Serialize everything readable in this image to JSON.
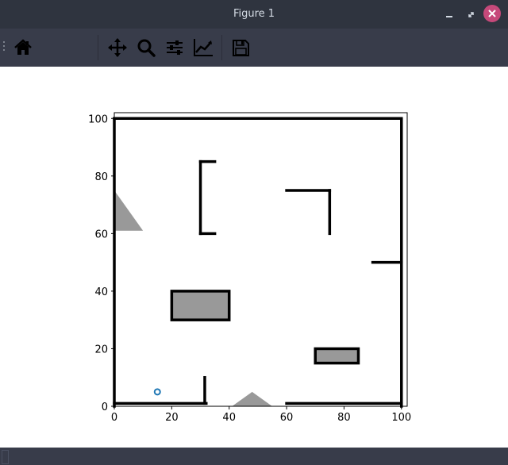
{
  "window": {
    "title": "Figure 1"
  },
  "toolbar": {
    "buttons": [
      {
        "name": "home-button",
        "icon": "home-icon"
      },
      {
        "name": "pan-button",
        "icon": "move-icon"
      },
      {
        "name": "zoom-button",
        "icon": "search-icon"
      },
      {
        "name": "configure-subplots-button",
        "icon": "sliders-icon"
      },
      {
        "name": "edit-axis-button",
        "icon": "line-chart-icon"
      },
      {
        "name": "save-button",
        "icon": "floppy-icon"
      }
    ]
  },
  "colors": {
    "titlebar": "#2f343f",
    "toolbar": "#383c4a",
    "close": "#c6497a",
    "marker": "#1f77b4"
  },
  "chart_data": {
    "type": "heatmap",
    "title": "",
    "xlabel": "",
    "ylabel": "",
    "xlim": [
      0,
      102
    ],
    "ylim": [
      0,
      102
    ],
    "x_ticks": [
      "0",
      "20",
      "40",
      "60",
      "80",
      "100"
    ],
    "y_ticks": [
      "0",
      "20",
      "40",
      "60",
      "80",
      "100"
    ],
    "colormap": "gray_r",
    "walls": [
      {
        "x": [
          0,
          100
        ],
        "y": [
          100,
          100
        ]
      },
      {
        "x": [
          0,
          0
        ],
        "y": [
          0,
          100
        ]
      },
      {
        "x": [
          100,
          100
        ],
        "y": [
          0,
          100
        ]
      },
      {
        "x": [
          0,
          32
        ],
        "y": [
          1,
          1
        ]
      },
      {
        "x": [
          60,
          100
        ],
        "y": [
          1,
          1
        ]
      },
      {
        "x": [
          31.5,
          31.5
        ],
        "y": [
          1,
          10
        ]
      },
      {
        "x": [
          30,
          35
        ],
        "y": [
          85,
          85
        ]
      },
      {
        "x": [
          30,
          30
        ],
        "y": [
          60,
          85
        ]
      },
      {
        "x": [
          30,
          35
        ],
        "y": [
          60,
          60
        ]
      },
      {
        "x": [
          60,
          75
        ],
        "y": [
          75,
          75
        ]
      },
      {
        "x": [
          75,
          75
        ],
        "y": [
          60,
          75
        ]
      },
      {
        "x": [
          90,
          100
        ],
        "y": [
          50,
          50
        ]
      }
    ],
    "obstacles": [
      {
        "x": [
          20,
          40
        ],
        "y": [
          30,
          40
        ]
      },
      {
        "x": [
          70,
          85
        ],
        "y": [
          15,
          20
        ]
      }
    ],
    "unknown_regions": [
      {
        "points": [
          [
            0,
            75
          ],
          [
            0,
            61
          ],
          [
            10,
            61
          ]
        ]
      },
      {
        "points": [
          [
            41,
            0
          ],
          [
            48,
            5
          ],
          [
            55,
            0
          ]
        ]
      }
    ],
    "robot": {
      "x": 15,
      "y": 5
    }
  }
}
